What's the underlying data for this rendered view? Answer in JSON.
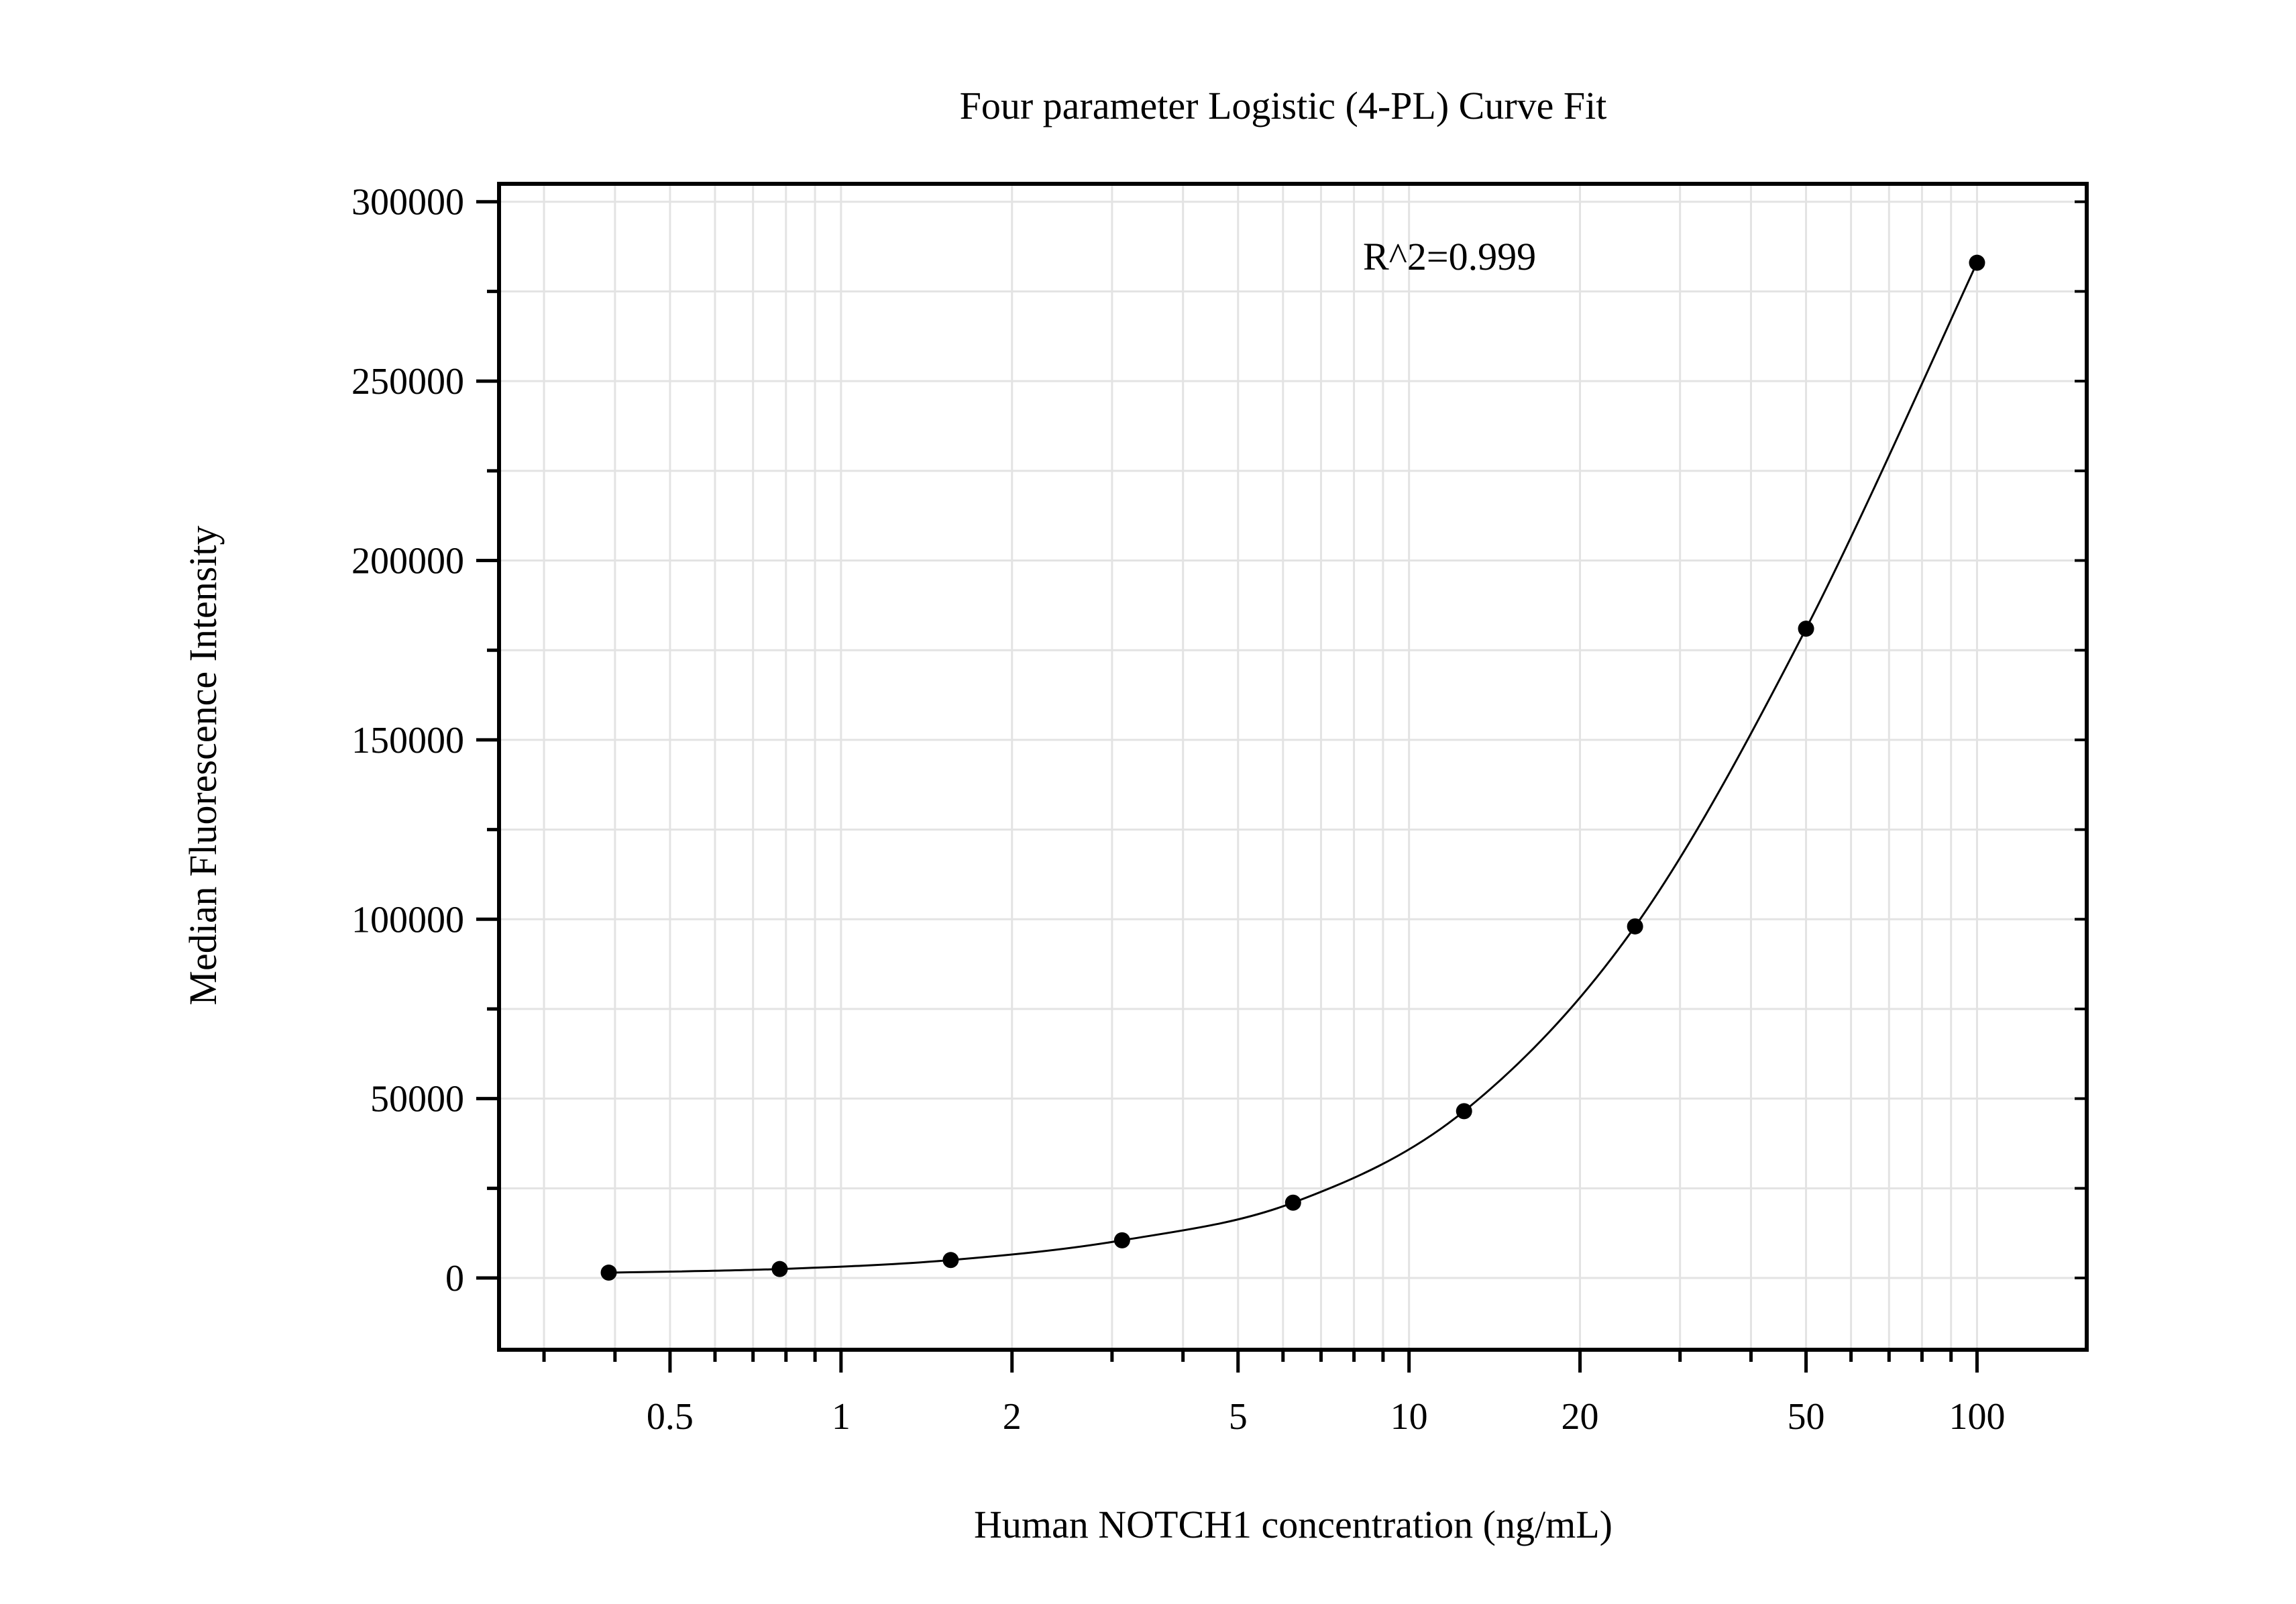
{
  "chart_data": {
    "type": "scatter",
    "title": "Four parameter Logistic (4-PL) Curve Fit",
    "xlabel": "Human NOTCH1 concentration (ng/mL)",
    "ylabel": "Median Fluorescence Intensity",
    "annotation": "R^2=0.999",
    "x_scale": "log",
    "xlim": [
      0.25,
      156
    ],
    "ylim": [
      -20000,
      305000
    ],
    "x_ticks": [
      0.5,
      1,
      2,
      5,
      10,
      20,
      50,
      100
    ],
    "x_tick_labels": [
      "0.5",
      "1",
      "2",
      "5",
      "10",
      "20",
      "50",
      "100"
    ],
    "y_ticks": [
      0,
      50000,
      100000,
      150000,
      200000,
      250000,
      300000
    ],
    "y_tick_labels": [
      "0",
      "50000",
      "100000",
      "150000",
      "200000",
      "250000",
      "300000"
    ],
    "grid": true,
    "legend": "none",
    "series": [
      {
        "x": [
          0.39,
          0.78,
          1.56,
          3.125,
          6.25,
          12.5,
          25,
          50,
          100
        ],
        "y": [
          1500,
          2500,
          5000,
          10500,
          21000,
          46500,
          98000,
          181000,
          283000
        ],
        "marker_color": "#000000",
        "fit_line": "4-PL curve"
      }
    ],
    "colors": {
      "marker": "#000000",
      "grid": "#e3e3e3",
      "axis": "#000000"
    }
  }
}
